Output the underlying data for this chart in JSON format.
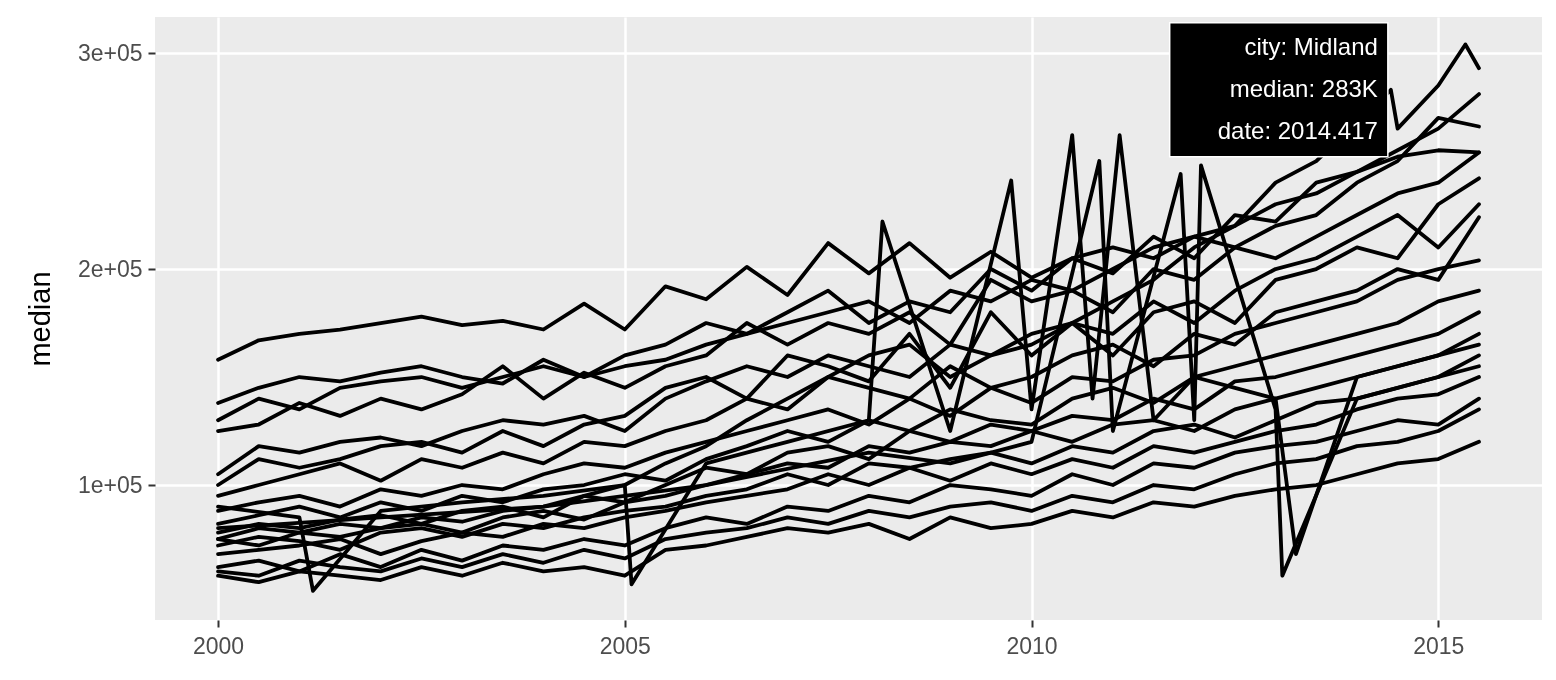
{
  "chart_data": {
    "type": "line",
    "ylabel": "median",
    "x": [
      2000,
      2000.5,
      2001,
      2001.5,
      2002,
      2002.5,
      2003,
      2003.5,
      2004,
      2004.5,
      2005,
      2005.5,
      2006,
      2006.5,
      2007,
      2007.5,
      2008,
      2008.5,
      2009,
      2009.5,
      2010,
      2010.5,
      2011,
      2011.5,
      2012,
      2012.5,
      2013,
      2013.5,
      2014,
      2014.5,
      2015,
      2015.5
    ],
    "xlim": [
      1999.225,
      2016.275
    ],
    "xticks": [
      2000,
      2005,
      2010,
      2015
    ],
    "ylim": [
      37500,
      316700
    ],
    "yticks": [
      {
        "value": 100000,
        "label": "1e+05"
      },
      {
        "value": 200000,
        "label": "2e+05"
      },
      {
        "value": 300000,
        "label": "3e+05"
      }
    ],
    "grid": true,
    "series": [
      {
        "color": "#000000",
        "values": [
          158000,
          167000,
          170000,
          172000,
          175000,
          178000,
          174000,
          176000,
          172000,
          184000,
          172000,
          192000,
          186000,
          201000,
          188000,
          212000,
          198000,
          212000,
          196000,
          208000,
          196000,
          205000,
          198000,
          215000,
          205000,
          225000,
          222000,
          240000,
          245000,
          252000,
          255000,
          254000
        ]
      },
      {
        "color": "#000000",
        "x": [
          2000,
          2000.5,
          2001,
          2001.5,
          2002,
          2002.5,
          2003,
          2003.5,
          2004,
          2004.5,
          2005,
          2005.5,
          2006,
          2006.5,
          2007,
          2007.5,
          2008,
          2008.5,
          2009,
          2009.5,
          2010,
          2010.5,
          2011,
          2011.5,
          2012,
          2012.5,
          2013,
          2013.5,
          2014.417,
          2014.5,
          2015,
          2015.333,
          2015.5
        ],
        "values": [
          75000,
          80000,
          78000,
          82000,
          80000,
          85000,
          83000,
          88000,
          90000,
          95000,
          100000,
          110000,
          118000,
          130000,
          140000,
          150000,
          160000,
          165000,
          150000,
          160000,
          165000,
          175000,
          185000,
          195000,
          210000,
          220000,
          240000,
          250000,
          283000,
          265000,
          285000,
          304000,
          293000
        ]
      },
      {
        "color": "#000000",
        "values": [
          138000,
          145000,
          150000,
          148000,
          152000,
          155000,
          150000,
          147000,
          158000,
          150000,
          155000,
          158000,
          165000,
          170000,
          175000,
          180000,
          185000,
          175000,
          190000,
          185000,
          195000,
          190000,
          200000,
          210000,
          215000,
          220000,
          230000,
          235000,
          245000,
          255000,
          265000,
          281000
        ]
      },
      {
        "color": "#000000",
        "values": [
          130000,
          140000,
          135000,
          145000,
          148000,
          150000,
          145000,
          150000,
          155000,
          150000,
          160000,
          165000,
          175000,
          170000,
          180000,
          190000,
          175000,
          185000,
          180000,
          200000,
          190000,
          205000,
          210000,
          205000,
          215000,
          210000,
          220000,
          225000,
          240000,
          250000,
          270000,
          266000
        ]
      },
      {
        "color": "#000000",
        "values": [
          125000,
          128000,
          138000,
          132000,
          140000,
          135000,
          142000,
          155000,
          140000,
          152000,
          145000,
          155000,
          160000,
          175000,
          165000,
          175000,
          170000,
          180000,
          165000,
          195000,
          185000,
          190000,
          180000,
          200000,
          195000,
          210000,
          205000,
          215000,
          225000,
          235000,
          240000,
          254000
        ]
      },
      {
        "color": "#000000",
        "values": [
          105000,
          118000,
          115000,
          120000,
          122000,
          118000,
          125000,
          130000,
          128000,
          132000,
          125000,
          140000,
          148000,
          155000,
          150000,
          160000,
          155000,
          150000,
          165000,
          160000,
          170000,
          175000,
          160000,
          180000,
          185000,
          175000,
          195000,
          200000,
          210000,
          205000,
          230000,
          242000
        ]
      },
      {
        "color": "#000000",
        "values": [
          100000,
          112000,
          108000,
          112000,
          118000,
          120000,
          115000,
          125000,
          118000,
          128000,
          132000,
          145000,
          150000,
          140000,
          160000,
          155000,
          148000,
          170000,
          145000,
          180000,
          160000,
          175000,
          170000,
          185000,
          175000,
          190000,
          200000,
          205000,
          215000,
          225000,
          210000,
          230000
        ]
      },
      {
        "color": "#000000",
        "values": [
          95000,
          100000,
          105000,
          110000,
          102000,
          112000,
          108000,
          115000,
          110000,
          120000,
          118000,
          125000,
          130000,
          140000,
          135000,
          150000,
          145000,
          140000,
          155000,
          145000,
          150000,
          160000,
          165000,
          155000,
          170000,
          165000,
          180000,
          185000,
          190000,
          200000,
          195000,
          224000
        ]
      },
      {
        "color": "#000000",
        "values": [
          88000,
          92000,
          95000,
          90000,
          98000,
          95000,
          100000,
          98000,
          105000,
          110000,
          108000,
          115000,
          120000,
          125000,
          130000,
          135000,
          128000,
          140000,
          132000,
          145000,
          138000,
          150000,
          148000,
          158000,
          160000,
          170000,
          175000,
          180000,
          185000,
          195000,
          200000,
          204000
        ]
      },
      {
        "color": "#000000",
        "values": [
          82000,
          86000,
          90000,
          85000,
          92000,
          88000,
          95000,
          92000,
          98000,
          100000,
          105000,
          102000,
          112000,
          118000,
          125000,
          120000,
          130000,
          125000,
          135000,
          130000,
          128000,
          140000,
          145000,
          138000,
          150000,
          155000,
          160000,
          165000,
          170000,
          175000,
          185000,
          190000
        ]
      },
      {
        "color": "#000000",
        "values": [
          78000,
          82000,
          80000,
          84000,
          86000,
          82000,
          88000,
          90000,
          85000,
          95000,
          92000,
          100000,
          108000,
          105000,
          115000,
          118000,
          112000,
          125000,
          120000,
          128000,
          125000,
          132000,
          130000,
          140000,
          135000,
          148000,
          150000,
          155000,
          160000,
          165000,
          170000,
          180000
        ]
      },
      {
        "color": "#000000",
        "values": [
          75000,
          72000,
          78000,
          76000,
          80000,
          82000,
          78000,
          85000,
          88000,
          84000,
          92000,
          95000,
          100000,
          105000,
          110000,
          108000,
          118000,
          115000,
          120000,
          118000,
          125000,
          120000,
          128000,
          130000,
          125000,
          135000,
          140000,
          145000,
          150000,
          155000,
          160000,
          170000
        ]
      },
      {
        "color": "#000000",
        "values": [
          72000,
          76000,
          74000,
          70000,
          78000,
          80000,
          76000,
          82000,
          80000,
          85000,
          88000,
          90000,
          95000,
          98000,
          105000,
          100000,
          110000,
          108000,
          112000,
          115000,
          110000,
          118000,
          115000,
          125000,
          128000,
          122000,
          130000,
          138000,
          140000,
          145000,
          150000,
          160000
        ]
      },
      {
        "color": "#000000",
        "values": [
          68000,
          70000,
          72000,
          75000,
          68000,
          74000,
          78000,
          76000,
          82000,
          80000,
          85000,
          88000,
          92000,
          95000,
          98000,
          105000,
          100000,
          108000,
          102000,
          110000,
          105000,
          112000,
          108000,
          118000,
          115000,
          120000,
          125000,
          128000,
          135000,
          140000,
          142000,
          150000
        ]
      },
      {
        "color": "#000000",
        "values": [
          62000,
          65000,
          60000,
          68000,
          62000,
          70000,
          65000,
          72000,
          70000,
          75000,
          72000,
          80000,
          85000,
          82000,
          90000,
          88000,
          95000,
          92000,
          100000,
          98000,
          95000,
          105000,
          100000,
          110000,
          108000,
          115000,
          118000,
          120000,
          125000,
          130000,
          128000,
          140000
        ]
      },
      {
        "color": "#000000",
        "values": [
          60000,
          58000,
          65000,
          62000,
          60000,
          66000,
          62000,
          68000,
          64000,
          70000,
          66000,
          75000,
          78000,
          80000,
          85000,
          82000,
          88000,
          85000,
          90000,
          92000,
          88000,
          95000,
          92000,
          100000,
          98000,
          105000,
          110000,
          112000,
          118000,
          120000,
          125000,
          135000
        ]
      },
      {
        "color": "#000000",
        "values": [
          58000,
          55000,
          60000,
          58000,
          56000,
          62000,
          58000,
          64000,
          60000,
          62000,
          58000,
          70000,
          72000,
          76000,
          80000,
          78000,
          82000,
          75000,
          85000,
          80000,
          82000,
          88000,
          85000,
          92000,
          90000,
          95000,
          98000,
          100000,
          105000,
          110000,
          112000,
          120000
        ]
      },
      {
        "color": "#000000",
        "x": [
          2000,
          2001,
          2001.167,
          2002,
          2003,
          2004,
          2005,
          2005.083,
          2006,
          2007,
          2008,
          2008.167,
          2009,
          2009.75,
          2010,
          2010.5,
          2010.75,
          2011.083,
          2011.5,
          2012,
          2012.5,
          2013,
          2013.25,
          2014,
          2015,
          2015.5
        ],
        "values": [
          90000,
          85000,
          51000,
          88000,
          92000,
          95000,
          100000,
          54000,
          110000,
          120000,
          130000,
          222000,
          125000,
          241000,
          135000,
          262000,
          140000,
          262000,
          130000,
          150000,
          145000,
          140000,
          68000,
          150000,
          160000,
          165000
        ]
      },
      {
        "color": "#000000",
        "x": [
          2000,
          2002,
          2004,
          2006,
          2008,
          2009,
          2010,
          2010.833,
          2011,
          2011.833,
          2012,
          2012.083,
          2013,
          2013.083,
          2014,
          2015,
          2015.5
        ],
        "values": [
          80000,
          85000,
          90000,
          100000,
          115000,
          110000,
          120000,
          250000,
          125000,
          244000,
          130000,
          248000,
          135000,
          58000,
          140000,
          150000,
          155000
        ]
      }
    ],
    "annotations": [
      {
        "text": "city: Midland\nmedian: 283K\ndate: 2014.417",
        "x": 2014.417,
        "y": 283000
      }
    ]
  }
}
